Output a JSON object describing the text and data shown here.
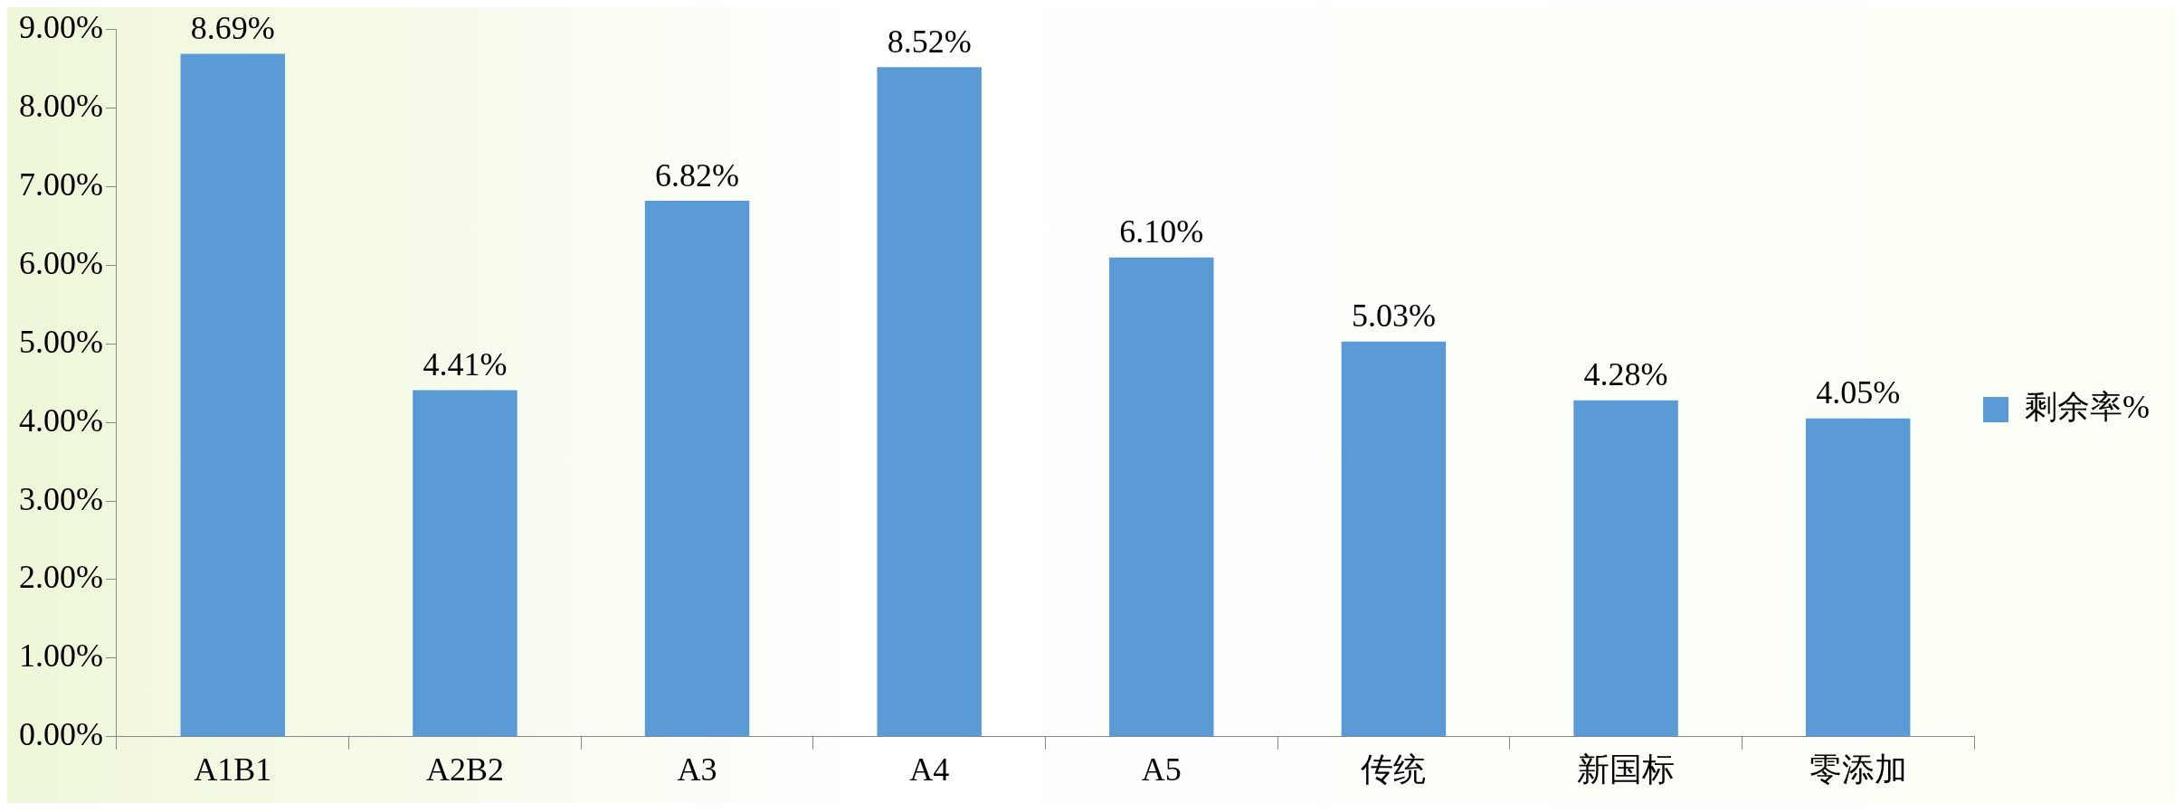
{
  "chart_data": {
    "type": "bar",
    "categories": [
      "A1B1",
      "A2B2",
      "A3",
      "A4",
      "A5",
      "传统",
      "新国标",
      "零添加"
    ],
    "series": [
      {
        "name": "剩余率%",
        "color": "#5b9bd5",
        "values": [
          8.69,
          4.41,
          6.82,
          8.52,
          6.1,
          5.03,
          4.28,
          4.05
        ],
        "value_labels": [
          "8.69%",
          "4.41%",
          "6.82%",
          "8.52%",
          "6.10%",
          "5.03%",
          "4.28%",
          "4.05%"
        ]
      }
    ],
    "ylim": [
      0,
      9
    ],
    "yticks": [
      {
        "value": 0,
        "label": "0.00%"
      },
      {
        "value": 1,
        "label": "1.00%"
      },
      {
        "value": 2,
        "label": "2.00%"
      },
      {
        "value": 3,
        "label": "3.00%"
      },
      {
        "value": 4,
        "label": "4.00%"
      },
      {
        "value": 5,
        "label": "5.00%"
      },
      {
        "value": 6,
        "label": "6.00%"
      },
      {
        "value": 7,
        "label": "7.00%"
      },
      {
        "value": 8,
        "label": "8.00%"
      },
      {
        "value": 9,
        "label": "9.00%"
      }
    ],
    "grid": false,
    "legend": "right"
  }
}
